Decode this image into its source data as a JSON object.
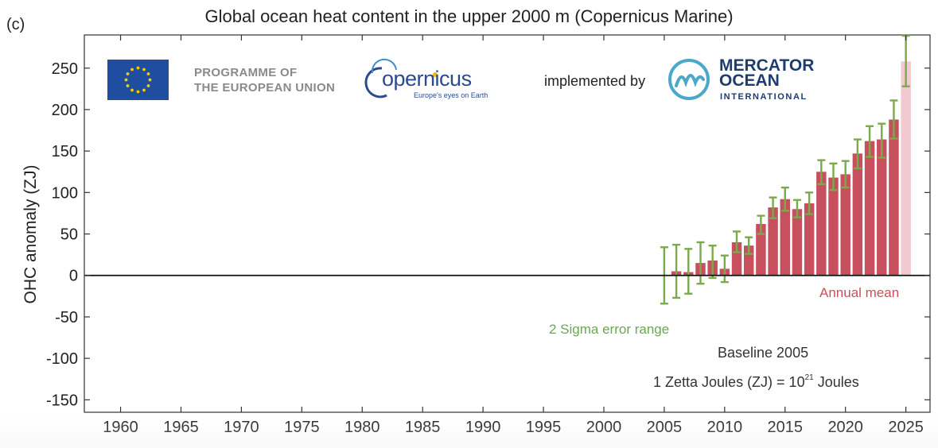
{
  "panel_label": "(c)",
  "logos": {
    "eu_line1": "PROGRAMME OF",
    "eu_line2": "THE EUROPEAN UNION",
    "copernicus_name": "opernicus",
    "copernicus_tagline": "Europe's eyes on Earth",
    "implemented_by": "implemented by",
    "mercator_line1": "MERCATOR",
    "mercator_line2": "OCEAN",
    "mercator_line3": "INTERNATIONAL"
  },
  "annotations": {
    "annual_mean": "Annual mean",
    "sigma": "2 Sigma error range",
    "baseline": "Baseline 2005",
    "zj_prefix": "1 Zetta Joules (ZJ) = 10",
    "zj_exponent": "21",
    "zj_suffix": " Joules"
  },
  "colors": {
    "bar": "#c8505e",
    "bar_provisional": "#f2c9d0",
    "error_bar": "#7aaa4a",
    "eu_flag": "#1f4ea1",
    "eu_star": "#f5d000"
  },
  "chart_data": {
    "type": "bar",
    "title": "Global ocean heat content in the upper 2000 m (Copernicus Marine)",
    "ylabel": "OHC anomaly (ZJ)",
    "xlabel": "",
    "xlim": [
      1957,
      2027
    ],
    "ylim": [
      -165,
      290
    ],
    "xticks": [
      1960,
      1965,
      1970,
      1975,
      1980,
      1985,
      1990,
      1995,
      2000,
      2005,
      2010,
      2015,
      2020,
      2025
    ],
    "yticks": [
      -150,
      -100,
      -50,
      0,
      50,
      100,
      150,
      200,
      250
    ],
    "grid": false,
    "series": [
      {
        "name": "Annual mean",
        "x": [
          2005,
          2006,
          2007,
          2008,
          2009,
          2010,
          2011,
          2012,
          2013,
          2014,
          2015,
          2016,
          2017,
          2018,
          2019,
          2020,
          2021,
          2022,
          2023,
          2024,
          2025
        ],
        "values": [
          0,
          5,
          4,
          15,
          18,
          8,
          40,
          36,
          62,
          82,
          92,
          80,
          87,
          125,
          118,
          122,
          147,
          162,
          164,
          188,
          258
        ],
        "error_low": [
          -34,
          -27,
          -22,
          -10,
          -3,
          -8,
          28,
          26,
          50,
          69,
          78,
          70,
          74,
          110,
          103,
          106,
          129,
          143,
          142,
          165,
          228
        ],
        "error_high": [
          34,
          37,
          32,
          40,
          36,
          24,
          53,
          46,
          72,
          94,
          106,
          91,
          100,
          139,
          135,
          138,
          164,
          180,
          183,
          211,
          289
        ],
        "provisional": [
          false,
          false,
          false,
          false,
          false,
          false,
          false,
          false,
          false,
          false,
          false,
          false,
          false,
          false,
          false,
          false,
          false,
          false,
          false,
          false,
          true
        ]
      }
    ]
  }
}
